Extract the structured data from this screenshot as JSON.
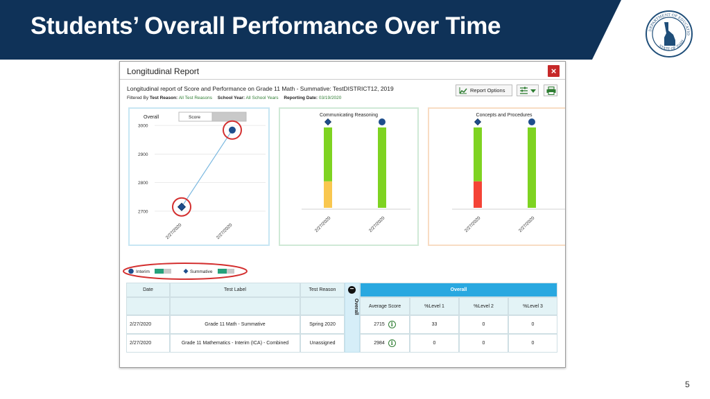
{
  "slide": {
    "title": "Students’ Overall Performance Over Time",
    "page_number": "5",
    "colors": {
      "band": "#0f3258",
      "accent_blue": "#29a8e0",
      "close_red": "#c62828",
      "annotation_red": "#d32f2f"
    },
    "seal_icon": "department-of-education-seal-idaho"
  },
  "dialog": {
    "title": "Longitudinal Report",
    "close_label": "×",
    "subtitle": "Longitudinal report of Score and Performance on Grade 11 Math - Summative: TestDISTRICT12, 2019",
    "filters": {
      "filtered_by": "Filtered By",
      "test_reason_label": "Test Reason:",
      "test_reason_value": "All Test Reasons",
      "school_year_label": "School Year:",
      "school_year_value": "All School Years",
      "reporting_date_label": "Reporting Date:",
      "reporting_date_value": "03/19/2020"
    },
    "report_options_label": "Report Options",
    "icons": [
      "chart-line-icon",
      "filter-settings-icon",
      "chevron-down-icon",
      "print-icon"
    ]
  },
  "panels": {
    "overall": {
      "label": "Overall",
      "toggle_score": "Score",
      "ytick_labels": [
        "3000",
        "2900",
        "2800",
        "2700"
      ],
      "xtick_labels": [
        "2/27/2020",
        "2/27/2020"
      ]
    },
    "communicating": {
      "label": "Communicating Reasoning",
      "xtick_labels": [
        "2/27/2020",
        "2/27/2020"
      ]
    },
    "concepts": {
      "label": "Concepts and Procedures",
      "xtick_labels": [
        "2/27/2020",
        "2/27/2020"
      ]
    }
  },
  "chart_data": [
    {
      "type": "line",
      "title": "Overall",
      "x": [
        "2/27/2020",
        "2/27/2020"
      ],
      "series": [
        {
          "name": "Summative",
          "marker": "diamond",
          "values": [
            2715,
            null
          ]
        },
        {
          "name": "Interim",
          "marker": "circle",
          "values": [
            null,
            2984
          ]
        }
      ],
      "ylim": [
        2690,
        3010
      ],
      "grid": true
    },
    {
      "type": "bar",
      "title": "Communicating Reasoning",
      "categories": [
        "2/27/2020",
        "2/27/2020"
      ],
      "stacks": [
        [
          {
            "color": "#f9c74f",
            "fraction": 0.33
          },
          {
            "color": "#7ed321",
            "fraction": 0.67
          }
        ],
        [
          {
            "color": "#7ed321",
            "fraction": 1.0
          }
        ]
      ],
      "markers": [
        "diamond",
        "circle"
      ]
    },
    {
      "type": "bar",
      "title": "Concepts and Procedures",
      "categories": [
        "2/27/2020",
        "2/27/2020"
      ],
      "stacks": [
        [
          {
            "color": "#f44336",
            "fraction": 0.33
          },
          {
            "color": "#7ed321",
            "fraction": 0.67
          }
        ],
        [
          {
            "color": "#7ed321",
            "fraction": 1.0
          }
        ]
      ],
      "markers": [
        "diamond",
        "circle"
      ]
    }
  ],
  "legend": {
    "items": [
      {
        "label": "Interim",
        "marker": "circle"
      },
      {
        "label": "Summative",
        "marker": "diamond"
      }
    ]
  },
  "table": {
    "headers": {
      "date": "Date",
      "test_label": "Test Label",
      "test_reason": "Test Reason"
    },
    "toggle_label": "Overall",
    "overall_header": "Overall",
    "sub_headers": [
      "Average Score",
      "%Level 1",
      "%Level 2",
      "%Level 3"
    ],
    "rows": [
      {
        "date": "2/27/2020",
        "test_label": "Grade 11 Math - Summative",
        "test_reason": "Spring 2020",
        "avg": "2715",
        "l1": "33",
        "l2": "0",
        "l3": "0"
      },
      {
        "date": "2/27/2020",
        "test_label": "Grade 11 Mathematics - Interim (ICA) - Combined",
        "test_reason": "Unassigned",
        "avg": "2984",
        "l1": "0",
        "l2": "0",
        "l3": "0"
      }
    ],
    "info_icon": "i"
  }
}
